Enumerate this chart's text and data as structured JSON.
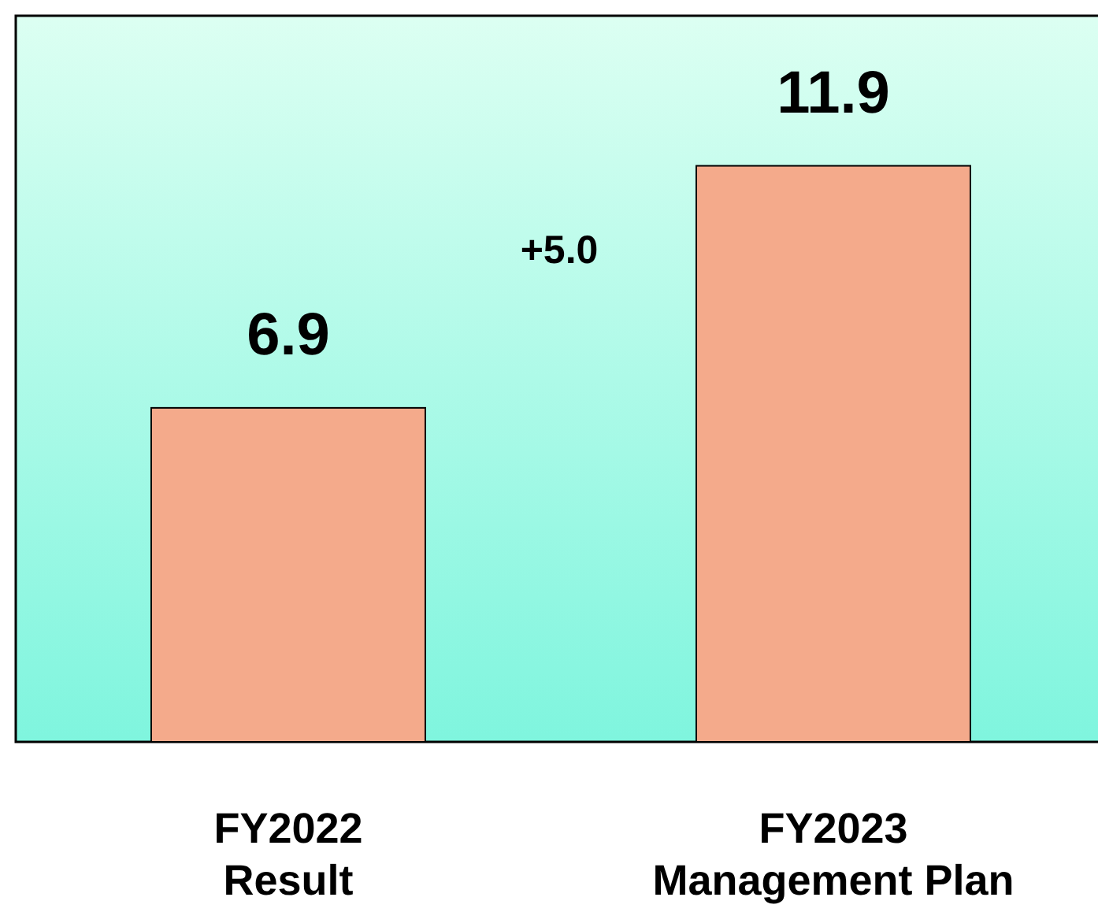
{
  "chart_data": {
    "type": "bar",
    "categories": [
      "FY2022\nResult",
      "FY2023\nManagement Plan"
    ],
    "values": [
      6.9,
      11.9
    ],
    "color": "#f4aa8b",
    "ylim": [
      0,
      15
    ],
    "tick_labels": "x",
    "data_labels": true,
    "annotations": [
      "+5.0"
    ]
  }
}
